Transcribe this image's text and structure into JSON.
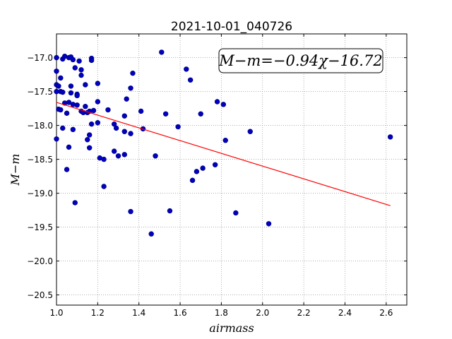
{
  "chart_data": {
    "type": "scatter",
    "title": "2021-10-01_040726",
    "xlabel": "airmass",
    "ylabel": "M−m",
    "xlim": [
      1.0,
      2.7
    ],
    "ylim": [
      -20.65,
      -16.65
    ],
    "invert_y": true,
    "grid": true,
    "xticks": [
      1.0,
      1.2,
      1.4,
      1.6,
      1.8,
      2.0,
      2.2,
      2.4,
      2.6
    ],
    "xtick_labels": [
      "1.0",
      "1.2",
      "1.4",
      "1.6",
      "1.8",
      "2.0",
      "2.2",
      "2.4",
      "2.6"
    ],
    "yticks": [
      -17.0,
      -17.5,
      -18.0,
      -18.5,
      -19.0,
      -19.5,
      -20.0,
      -20.5
    ],
    "ytick_labels": [
      "−17.0",
      "−17.5",
      "−18.0",
      "−18.5",
      "−19.0",
      "−19.5",
      "−20.0",
      "−20.5"
    ],
    "annotation": "M−m=−0.94χ−16.72",
    "annotation_position": "top-right",
    "colors": {
      "points": "#0000bf",
      "fit": "#ff0000",
      "grid": "#808080",
      "frame": "#000000"
    },
    "fit": {
      "slope": -0.94,
      "intercept": -16.72,
      "x_range": [
        1.0,
        2.62
      ]
    },
    "points": [
      {
        "x": 1.0,
        "y": -17.0
      },
      {
        "x": 1.0,
        "y": -17.2
      },
      {
        "x": 1.0,
        "y": -17.4
      },
      {
        "x": 1.0,
        "y": -17.5
      },
      {
        "x": 1.0,
        "y": -18.2
      },
      {
        "x": 1.01,
        "y": -17.42
      },
      {
        "x": 1.01,
        "y": -17.76
      },
      {
        "x": 1.02,
        "y": -17.3
      },
      {
        "x": 1.02,
        "y": -17.77
      },
      {
        "x": 1.02,
        "y": -17.5
      },
      {
        "x": 1.03,
        "y": -17.51
      },
      {
        "x": 1.03,
        "y": -17.02
      },
      {
        "x": 1.03,
        "y": -18.04
      },
      {
        "x": 1.04,
        "y": -16.98
      },
      {
        "x": 1.04,
        "y": -17.67
      },
      {
        "x": 1.05,
        "y": -17.82
      },
      {
        "x": 1.05,
        "y": -18.65
      },
      {
        "x": 1.06,
        "y": -18.32
      },
      {
        "x": 1.06,
        "y": -17.66
      },
      {
        "x": 1.06,
        "y": -17.0
      },
      {
        "x": 1.07,
        "y": -17.42
      },
      {
        "x": 1.07,
        "y": -17.52
      },
      {
        "x": 1.07,
        "y": -16.99
      },
      {
        "x": 1.08,
        "y": -17.03
      },
      {
        "x": 1.08,
        "y": -18.06
      },
      {
        "x": 1.08,
        "y": -17.69
      },
      {
        "x": 1.09,
        "y": -17.15
      },
      {
        "x": 1.09,
        "y": -19.14
      },
      {
        "x": 1.1,
        "y": -17.54
      },
      {
        "x": 1.1,
        "y": -17.7
      },
      {
        "x": 1.1,
        "y": -17.56
      },
      {
        "x": 1.11,
        "y": -17.05
      },
      {
        "x": 1.12,
        "y": -17.18
      },
      {
        "x": 1.12,
        "y": -17.26
      },
      {
        "x": 1.12,
        "y": -17.79
      },
      {
        "x": 1.13,
        "y": -17.81
      },
      {
        "x": 1.14,
        "y": -17.4
      },
      {
        "x": 1.14,
        "y": -17.72
      },
      {
        "x": 1.15,
        "y": -17.81
      },
      {
        "x": 1.15,
        "y": -18.21
      },
      {
        "x": 1.16,
        "y": -18.33
      },
      {
        "x": 1.16,
        "y": -17.79
      },
      {
        "x": 1.16,
        "y": -18.14
      },
      {
        "x": 1.17,
        "y": -17.98
      },
      {
        "x": 1.17,
        "y": -17.01
      },
      {
        "x": 1.17,
        "y": -17.04
      },
      {
        "x": 1.18,
        "y": -17.78
      },
      {
        "x": 1.2,
        "y": -17.38
      },
      {
        "x": 1.2,
        "y": -17.65
      },
      {
        "x": 1.2,
        "y": -17.96
      },
      {
        "x": 1.21,
        "y": -18.48
      },
      {
        "x": 1.23,
        "y": -18.5
      },
      {
        "x": 1.23,
        "y": -18.9
      },
      {
        "x": 1.25,
        "y": -17.77
      },
      {
        "x": 1.28,
        "y": -17.98
      },
      {
        "x": 1.28,
        "y": -18.38
      },
      {
        "x": 1.29,
        "y": -18.04
      },
      {
        "x": 1.3,
        "y": -18.45
      },
      {
        "x": 1.33,
        "y": -17.86
      },
      {
        "x": 1.33,
        "y": -18.09
      },
      {
        "x": 1.33,
        "y": -18.43
      },
      {
        "x": 1.34,
        "y": -17.61
      },
      {
        "x": 1.36,
        "y": -17.45
      },
      {
        "x": 1.36,
        "y": -18.12
      },
      {
        "x": 1.36,
        "y": -19.27
      },
      {
        "x": 1.37,
        "y": -17.23
      },
      {
        "x": 1.41,
        "y": -17.79
      },
      {
        "x": 1.42,
        "y": -18.05
      },
      {
        "x": 1.46,
        "y": -19.6
      },
      {
        "x": 1.48,
        "y": -18.45
      },
      {
        "x": 1.51,
        "y": -16.92
      },
      {
        "x": 1.53,
        "y": -17.83
      },
      {
        "x": 1.55,
        "y": -19.26
      },
      {
        "x": 1.59,
        "y": -18.02
      },
      {
        "x": 1.63,
        "y": -17.17
      },
      {
        "x": 1.65,
        "y": -17.33
      },
      {
        "x": 1.66,
        "y": -18.81
      },
      {
        "x": 1.68,
        "y": -18.68
      },
      {
        "x": 1.7,
        "y": -17.83
      },
      {
        "x": 1.71,
        "y": -18.63
      },
      {
        "x": 1.77,
        "y": -18.58
      },
      {
        "x": 1.78,
        "y": -17.65
      },
      {
        "x": 1.81,
        "y": -17.69
      },
      {
        "x": 1.82,
        "y": -18.22
      },
      {
        "x": 1.87,
        "y": -19.29
      },
      {
        "x": 1.94,
        "y": -18.09
      },
      {
        "x": 2.03,
        "y": -19.45
      },
      {
        "x": 2.62,
        "y": -18.17
      }
    ]
  }
}
